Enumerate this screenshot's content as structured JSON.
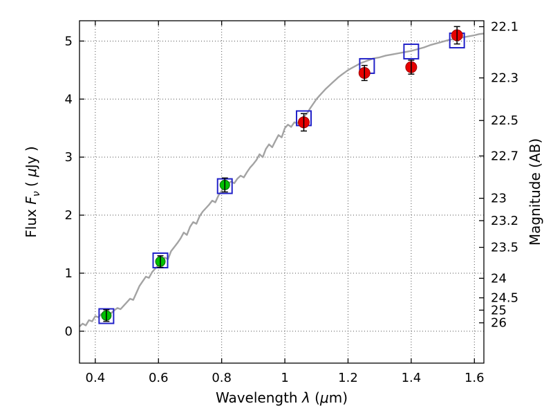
{
  "figure": {
    "background": "#ffffff"
  },
  "chart_data": {
    "type": "line",
    "title": "",
    "xlabel_text": "Wavelength λ (μm)",
    "xlabel_parts": [
      {
        "text": "Wavelength  ",
        "style": "normal"
      },
      {
        "text": "λ",
        "style": "italic"
      },
      {
        "text": " (",
        "style": "normal"
      },
      {
        "text": "μ",
        "style": "italic"
      },
      {
        "text": "m)",
        "style": "normal"
      }
    ],
    "ylabel_left_text": "Flux Fν ( μJy )",
    "ylabel_left_parts": [
      {
        "text": "Flux  ",
        "style": "normal"
      },
      {
        "text": "F",
        "style": "italic"
      },
      {
        "text": "ν",
        "style": "italic-sub"
      },
      {
        "text": " ( ",
        "style": "normal"
      },
      {
        "text": "μ",
        "style": "italic"
      },
      {
        "text": "Jy )",
        "style": "normal"
      }
    ],
    "ylabel_right_text": "Magnitude (AB)",
    "xlim": [
      0.35,
      1.63
    ],
    "ylim": [
      -0.55,
      5.35
    ],
    "grid": "dotted",
    "legend": "none",
    "x_ticks": [
      0.4,
      0.6,
      0.8,
      1.0,
      1.2,
      1.4,
      1.6
    ],
    "x_tick_labels": [
      "0.4",
      "0.6",
      "0.8",
      "1",
      "1.2",
      "1.4",
      "1.6"
    ],
    "y_ticks_left": [
      0,
      1,
      2,
      3,
      4,
      5
    ],
    "y_tick_labels_left": [
      "0",
      "1",
      "2",
      "3",
      "4",
      "5"
    ],
    "y_ticks_right_mags": [
      22.1,
      22.3,
      22.5,
      22.7,
      23.0,
      23.2,
      23.5,
      24.0,
      24.5,
      25.0,
      26.0
    ],
    "y_tick_labels_right": [
      "22.1",
      "22.3",
      "22.5",
      "22.7",
      "23",
      "23.2",
      "23.5",
      "24",
      "24.5",
      "25",
      "26"
    ],
    "mag_zeropoint_ab": 23.9,
    "colors": {
      "spectrum": "#a3a3a3",
      "square": "#2121c8",
      "green": "#00c000",
      "green_edge": "#006400",
      "red": "#e60000",
      "red_edge": "#a00000",
      "errorbar": "#000000"
    },
    "series": [
      {
        "name": "model-spectrum",
        "type": "line",
        "points": [
          [
            0.35,
            0.08
          ],
          [
            0.36,
            0.13
          ],
          [
            0.37,
            0.1
          ],
          [
            0.38,
            0.19
          ],
          [
            0.39,
            0.17
          ],
          [
            0.4,
            0.26
          ],
          [
            0.41,
            0.24
          ],
          [
            0.42,
            0.3
          ],
          [
            0.43,
            0.28
          ],
          [
            0.44,
            0.33
          ],
          [
            0.45,
            0.31
          ],
          [
            0.46,
            0.36
          ],
          [
            0.47,
            0.4
          ],
          [
            0.48,
            0.38
          ],
          [
            0.49,
            0.44
          ],
          [
            0.5,
            0.5
          ],
          [
            0.51,
            0.56
          ],
          [
            0.52,
            0.54
          ],
          [
            0.53,
            0.66
          ],
          [
            0.54,
            0.78
          ],
          [
            0.55,
            0.86
          ],
          [
            0.56,
            0.94
          ],
          [
            0.57,
            0.92
          ],
          [
            0.58,
            1.02
          ],
          [
            0.59,
            1.08
          ],
          [
            0.6,
            1.14
          ],
          [
            0.61,
            1.2
          ],
          [
            0.62,
            1.27
          ],
          [
            0.63,
            1.24
          ],
          [
            0.64,
            1.38
          ],
          [
            0.65,
            1.45
          ],
          [
            0.66,
            1.52
          ],
          [
            0.67,
            1.6
          ],
          [
            0.68,
            1.7
          ],
          [
            0.69,
            1.66
          ],
          [
            0.7,
            1.8
          ],
          [
            0.71,
            1.88
          ],
          [
            0.72,
            1.85
          ],
          [
            0.73,
            1.98
          ],
          [
            0.74,
            2.06
          ],
          [
            0.75,
            2.12
          ],
          [
            0.76,
            2.18
          ],
          [
            0.77,
            2.25
          ],
          [
            0.78,
            2.22
          ],
          [
            0.79,
            2.34
          ],
          [
            0.8,
            2.42
          ],
          [
            0.81,
            2.5
          ],
          [
            0.82,
            2.54
          ],
          [
            0.83,
            2.58
          ],
          [
            0.84,
            2.55
          ],
          [
            0.85,
            2.63
          ],
          [
            0.86,
            2.68
          ],
          [
            0.87,
            2.65
          ],
          [
            0.88,
            2.74
          ],
          [
            0.89,
            2.82
          ],
          [
            0.9,
            2.88
          ],
          [
            0.91,
            2.95
          ],
          [
            0.92,
            3.05
          ],
          [
            0.93,
            3.0
          ],
          [
            0.94,
            3.14
          ],
          [
            0.95,
            3.22
          ],
          [
            0.96,
            3.17
          ],
          [
            0.97,
            3.28
          ],
          [
            0.98,
            3.38
          ],
          [
            0.99,
            3.34
          ],
          [
            1.0,
            3.5
          ],
          [
            1.01,
            3.56
          ],
          [
            1.02,
            3.52
          ],
          [
            1.03,
            3.6
          ],
          [
            1.04,
            3.58
          ],
          [
            1.05,
            3.66
          ],
          [
            1.06,
            3.7
          ],
          [
            1.07,
            3.75
          ],
          [
            1.08,
            3.84
          ],
          [
            1.09,
            3.92
          ],
          [
            1.1,
            4.0
          ],
          [
            1.11,
            4.06
          ],
          [
            1.12,
            4.12
          ],
          [
            1.13,
            4.18
          ],
          [
            1.14,
            4.23
          ],
          [
            1.15,
            4.28
          ],
          [
            1.16,
            4.33
          ],
          [
            1.17,
            4.38
          ],
          [
            1.18,
            4.42
          ],
          [
            1.19,
            4.46
          ],
          [
            1.2,
            4.5
          ],
          [
            1.21,
            4.53
          ],
          [
            1.22,
            4.56
          ],
          [
            1.23,
            4.59
          ],
          [
            1.24,
            4.62
          ],
          [
            1.25,
            4.64
          ],
          [
            1.26,
            4.66
          ],
          [
            1.27,
            4.68
          ],
          [
            1.28,
            4.7
          ],
          [
            1.29,
            4.71
          ],
          [
            1.3,
            4.72
          ],
          [
            1.32,
            4.75
          ],
          [
            1.34,
            4.77
          ],
          [
            1.36,
            4.79
          ],
          [
            1.38,
            4.81
          ],
          [
            1.4,
            4.83
          ],
          [
            1.42,
            4.86
          ],
          [
            1.44,
            4.89
          ],
          [
            1.46,
            4.93
          ],
          [
            1.48,
            4.96
          ],
          [
            1.5,
            4.99
          ],
          [
            1.52,
            5.02
          ],
          [
            1.54,
            5.04
          ],
          [
            1.56,
            5.06
          ],
          [
            1.58,
            5.08
          ],
          [
            1.6,
            5.1
          ],
          [
            1.615,
            5.12
          ],
          [
            1.63,
            5.13
          ]
        ]
      },
      {
        "name": "model-photometry",
        "type": "scatter",
        "marker": "open-square",
        "points": [
          [
            0.435,
            0.26
          ],
          [
            0.606,
            1.22
          ],
          [
            0.81,
            2.5
          ],
          [
            1.06,
            3.67
          ],
          [
            1.26,
            4.57
          ],
          [
            1.4,
            4.82
          ],
          [
            1.545,
            5.01
          ]
        ]
      },
      {
        "name": "observed-optical",
        "type": "scatter",
        "marker": "circle",
        "color_key": "green",
        "points": [
          [
            0.435,
            0.27
          ],
          [
            0.606,
            1.2
          ],
          [
            0.81,
            2.52
          ]
        ],
        "yerr": [
          0.1,
          0.1,
          0.12
        ]
      },
      {
        "name": "observed-nir",
        "type": "scatter",
        "marker": "circle",
        "color_key": "red",
        "points": [
          [
            1.06,
            3.6
          ],
          [
            1.252,
            4.45
          ],
          [
            1.4,
            4.55
          ],
          [
            1.545,
            5.1
          ]
        ],
        "yerr": [
          0.15,
          0.13,
          0.12,
          0.15
        ]
      }
    ]
  }
}
